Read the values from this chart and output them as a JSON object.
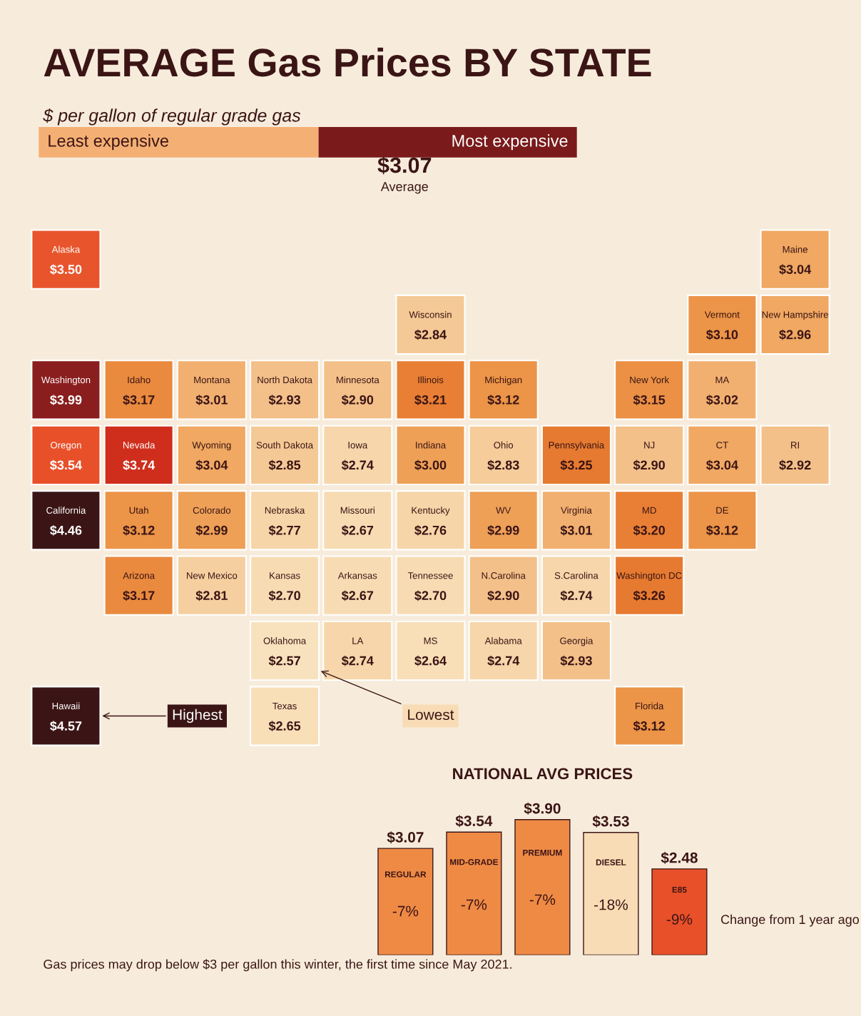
{
  "chart_data": [
    {
      "type": "other",
      "title": "AVERAGE Gas Prices BY STATE",
      "subtitle": "$ per gallon of regular grade gas",
      "categories": [
        "Washington",
        "Oregon",
        "California",
        "Nevada",
        "Idaho",
        "Montana",
        "Wyoming",
        "Utah",
        "Colorado",
        "Arizona",
        "New Mexico",
        "North Dakota",
        "South Dakota",
        "Nebraska",
        "Kansas",
        "Oklahoma",
        "Texas",
        "Minnesota",
        "Iowa",
        "Missouri",
        "Arkansas",
        "LA",
        "Wisconsin",
        "Illinois",
        "Michigan",
        "Indiana",
        "Ohio",
        "Kentucky",
        "Tennessee",
        "MS",
        "Alabama",
        "Georgia",
        "Florida",
        "S.Carolina",
        "N.Carolina",
        "Virginia",
        "WV",
        "Pennsylvania",
        "New York",
        "Vermont",
        "New Hampshire",
        "Maine",
        "MA",
        "RI",
        "CT",
        "NJ",
        "DE",
        "MD",
        "Washington DC",
        "Alaska",
        "Hawaii"
      ],
      "values": [
        3.99,
        3.54,
        4.46,
        3.74,
        3.17,
        3.01,
        3.04,
        3.12,
        2.99,
        3.17,
        2.81,
        2.93,
        2.85,
        2.77,
        2.7,
        2.57,
        2.65,
        2.9,
        2.74,
        2.67,
        2.67,
        2.74,
        2.84,
        3.21,
        3.12,
        3.0,
        2.83,
        2.76,
        2.7,
        2.64,
        2.74,
        2.93,
        3.12,
        2.74,
        2.9,
        3.01,
        2.99,
        3.25,
        3.15,
        3.1,
        2.96,
        3.04,
        3.02,
        2.92,
        3.04,
        2.9,
        3.12,
        3.2,
        3.26,
        3.5,
        4.57
      ],
      "value_labels": [
        "$3.99",
        "$3.54",
        "$4.46",
        "$3.74",
        "$3.17",
        "$3.01",
        "$3.04",
        "$3.12",
        "$2.99",
        "$3.17",
        "$2.81",
        "$2.93",
        "$2.85",
        "$2.77",
        "$2.70",
        "$2.57",
        "$2.65",
        "$2.90",
        "$2.74",
        "$2.67",
        "$2.67",
        "$2.74",
        "$2.84",
        "$3.21",
        "$3.12",
        "$3.00",
        "$2.83",
        "$2.76",
        "$2.70",
        "$2.64",
        "$2.74",
        "$2.93",
        "$3.12",
        "$2.74",
        "$2.90",
        "$3.01",
        "$2.99",
        "$3.25",
        "$3.15",
        "$3.10",
        "$2.96",
        "$3.04",
        "$3.02",
        "$2.92",
        "$3.04",
        "$2.90",
        "$3.12",
        "$3.20",
        "$3.26",
        "$3.50",
        "$4.57"
      ],
      "colors": [
        "#8a1e1e",
        "#e8502a",
        "#3b1515",
        "#cf2e1c",
        "#ea8a3e",
        "#f2b070",
        "#f0a862",
        "#ec9447",
        "#eea057",
        "#ea8a3e",
        "#f5cf9f",
        "#f3c08a",
        "#f5c995",
        "#f6d5a8",
        "#f7dcb3",
        "#f8e2be",
        "#f8dfb8",
        "#f3c08a",
        "#f6d6aa",
        "#f7dcb3",
        "#f7dcb3",
        "#f6d6aa",
        "#f5c995",
        "#e97f34",
        "#ec9447",
        "#eea057",
        "#f5cc9a",
        "#f6d5a8",
        "#f7dcb3",
        "#f8dfb8",
        "#f6d6aa",
        "#f3c08a",
        "#ec9447",
        "#f6d6aa",
        "#f3c08a",
        "#f2b070",
        "#eea057",
        "#e67a30",
        "#eb9044",
        "#ec9447",
        "#f0a862",
        "#f0a862",
        "#f2b070",
        "#f3c08a",
        "#f0a862",
        "#f3c08a",
        "#ec9447",
        "#e97f34",
        "#e67a30",
        "#e8552c",
        "#3b1515"
      ],
      "annotations": [
        "$3.07",
        "Average",
        "Least expensive",
        "Most expensive",
        "Lowest",
        "Highest",
        "Gas prices may drop below $3 per gallon this winter, the first time since May 2021."
      ]
    },
    {
      "type": "bar",
      "title": "NATIONAL AVG PRICES",
      "categories": [
        "REGULAR",
        "MID-GRADE",
        "PREMIUM",
        "DIESEL",
        "E85"
      ],
      "values": [
        3.07,
        3.54,
        3.9,
        3.53,
        2.48
      ],
      "value_labels": [
        "$3.07",
        "$3.54",
        "$3.90",
        "$3.53",
        "$2.48"
      ],
      "colors": [
        "#ef8a45",
        "#ef8a45",
        "#ef8a45",
        "#f8dcb5",
        "#e8502a"
      ],
      "annotations": [
        "-7%",
        "-7%",
        "-7%",
        "-18%",
        "-9%",
        "Change from 1 year ago"
      ]
    }
  ]
}
